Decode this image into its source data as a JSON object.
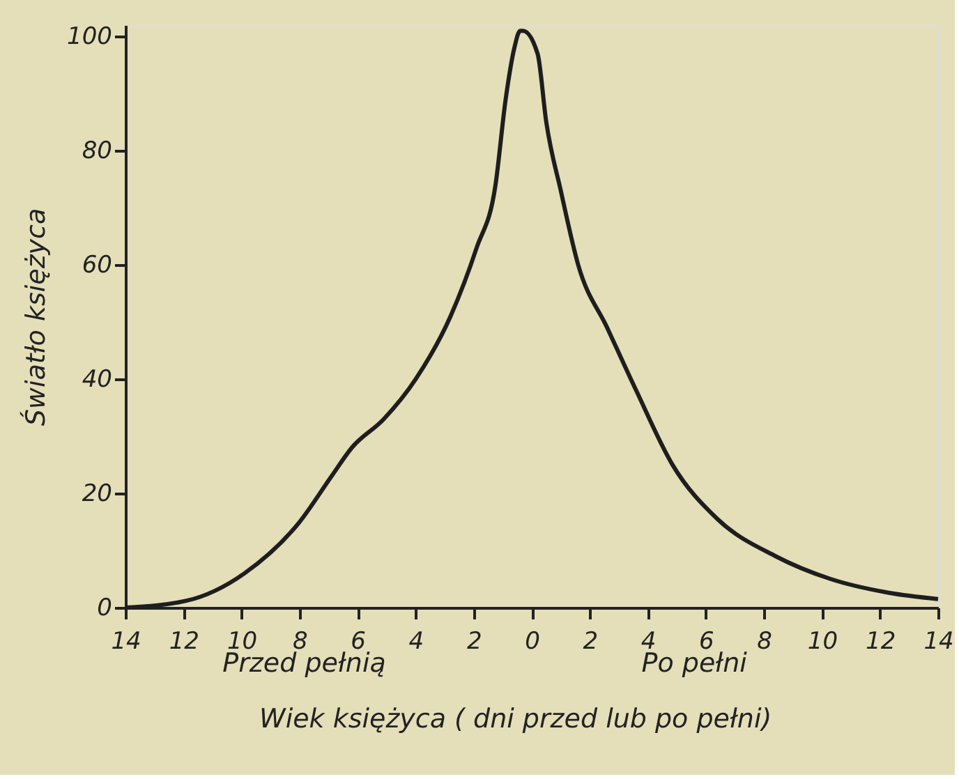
{
  "chart_data": {
    "type": "line",
    "xlabel": "Wiek księżyca ( dni przed lub po pełni)",
    "ylabel": "Światło księżyca",
    "annotations": [
      "Przed pełnią",
      "Po pełni"
    ],
    "x": [
      -14,
      -11.9,
      -9.9,
      -8.0,
      -6.9,
      -6.2,
      -5.1,
      -4.0,
      -2.8,
      -1.9,
      -1.25,
      -0.9,
      -0.6,
      -0.4,
      -0.3,
      0.2,
      0.5,
      1.0,
      1.6,
      2.6,
      3.6,
      4.85,
      6.4,
      8.4,
      10.3,
      12.3,
      14
    ],
    "series": [
      {
        "color": "#1e1e1e",
        "values": [
          0,
          1.2,
          6,
          15,
          23,
          28,
          33,
          40,
          51,
          63,
          74,
          89,
          98,
          101,
          101,
          97,
          85,
          73,
          60,
          49,
          38,
          25,
          15.5,
          9,
          5,
          2.6,
          1.5
        ]
      }
    ],
    "xlim": [
      -14,
      14
    ],
    "ylim": [
      0,
      102
    ],
    "xticks": [
      {
        "value": -14,
        "label": "14"
      },
      {
        "value": -12,
        "label": "12"
      },
      {
        "value": -10,
        "label": "10"
      },
      {
        "value": -8,
        "label": "8"
      },
      {
        "value": -6,
        "label": "6"
      },
      {
        "value": -4,
        "label": "4"
      },
      {
        "value": -2,
        "label": "2"
      },
      0,
      2,
      4,
      6,
      8,
      10,
      12,
      14
    ],
    "yticks": [
      0,
      20,
      40,
      60,
      80,
      100
    ],
    "grid": false,
    "marker": "none",
    "line_style": "solid"
  }
}
